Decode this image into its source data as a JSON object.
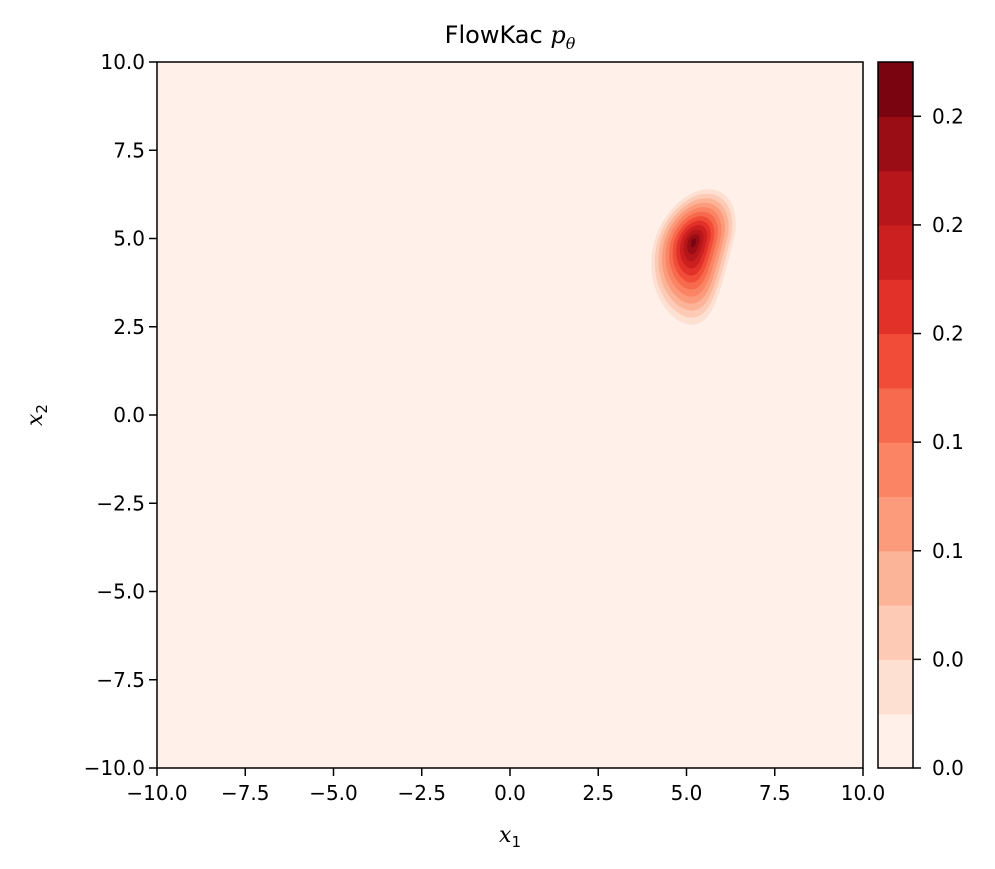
{
  "chart_data": {
    "type": "heatmap",
    "subtype": "filled-contour",
    "title_text": "FlowKac ",
    "title_math_symbol": "p",
    "title_math_subscript": "θ",
    "xlabel_symbol": "x",
    "xlabel_subscript": "1",
    "ylabel_symbol": "x",
    "ylabel_subscript": "2",
    "xlim": [
      -10,
      10
    ],
    "ylim": [
      -10,
      10
    ],
    "x_ticks": [
      -10.0,
      -7.5,
      -5.0,
      -2.5,
      0.0,
      2.5,
      5.0,
      7.5,
      10.0
    ],
    "x_tick_labels": [
      "−10.0",
      "−7.5",
      "−5.0",
      "−2.5",
      "0.0",
      "2.5",
      "5.0",
      "7.5",
      "10.0"
    ],
    "y_ticks": [
      10.0,
      7.5,
      5.0,
      2.5,
      0.0,
      -2.5,
      -5.0,
      -7.5,
      -10.0
    ],
    "y_tick_labels": [
      "10.0",
      "7.5",
      "5.0",
      "2.5",
      "0.0",
      "−2.5",
      "−5.0",
      "−7.5",
      "−10.0"
    ],
    "colormap": "Reds",
    "colorbar": {
      "range": [
        0,
        0.26
      ],
      "levels": 13,
      "tick_values": [
        0.0,
        0.04,
        0.08,
        0.12,
        0.16,
        0.2,
        0.24
      ],
      "tick_labels": [
        "0.0",
        "0.0",
        "0.1",
        "0.1",
        "0.2",
        "0.2",
        "0.2"
      ],
      "colors": [
        "#fff0e9",
        "#fee0d2",
        "#fdcab5",
        "#fcb499",
        "#fc9b7c",
        "#fb8464",
        "#f86a4d",
        "#f14c38",
        "#e23128",
        "#cc1f1f",
        "#b7161a",
        "#9a0d15",
        "#7a0410"
      ]
    },
    "density_peak": [
      5.2,
      4.9
    ],
    "density_extent_x": [
      3.3,
      6.5
    ],
    "density_extent_y": [
      1.5,
      7.0
    ],
    "grid": false
  }
}
